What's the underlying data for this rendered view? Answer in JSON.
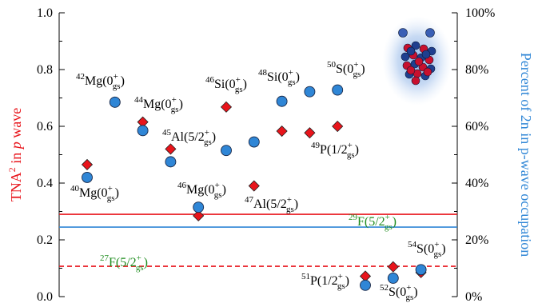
{
  "chart_data": {
    "type": "scatter",
    "x": [
      1,
      2,
      3,
      4,
      5,
      6,
      7,
      8,
      9,
      10,
      11,
      12,
      13
    ],
    "series": [
      {
        "name": "TNA² in p wave",
        "axis": "left",
        "color": "#e8141b",
        "marker": "diamond",
        "points": [
          {
            "x": 1,
            "y": 0.465
          },
          {
            "x": 2,
            "y": 0.685
          },
          {
            "x": 3,
            "y": 0.615
          },
          {
            "x": 4,
            "y": 0.52
          },
          {
            "x": 5,
            "y": 0.285
          },
          {
            "x": 6,
            "y": 0.668
          },
          {
            "x": 7,
            "y": 0.39
          },
          {
            "x": 8,
            "y": 0.583
          },
          {
            "x": 9,
            "y": 0.577
          },
          {
            "x": 10,
            "y": 0.6
          },
          {
            "x": 11,
            "y": 0.072
          },
          {
            "x": 12,
            "y": 0.105
          },
          {
            "x": 13,
            "y": 0.085
          }
        ]
      },
      {
        "name": "Percent of 2n in p-wave occupation",
        "axis": "right",
        "color": "#2f86d6",
        "marker": "circle",
        "points": [
          {
            "x": 1,
            "y": 42
          },
          {
            "x": 2,
            "y": 68.5
          },
          {
            "x": 3,
            "y": 58.5
          },
          {
            "x": 4,
            "y": 47.5
          },
          {
            "x": 5,
            "y": 31.5
          },
          {
            "x": 6,
            "y": 51.5
          },
          {
            "x": 7,
            "y": 54.5
          },
          {
            "x": 8,
            "y": 68.8
          },
          {
            "x": 9,
            "y": 72.2
          },
          {
            "x": 10,
            "y": 72.8
          },
          {
            "x": 11,
            "y": 4
          },
          {
            "x": 12,
            "y": 6.5
          },
          {
            "x": 13,
            "y": 9.5
          }
        ]
      }
    ],
    "reference_lines": [
      {
        "axis": "left",
        "y": 0.29,
        "color": "#e8141b",
        "style": "solid",
        "label_id": "f29"
      },
      {
        "axis": "left",
        "y": 0.245,
        "color": "#2f86d6",
        "style": "solid",
        "label_id": ""
      },
      {
        "axis": "left",
        "y": 0.107,
        "color": "#e8141b",
        "style": "dashed",
        "label_id": "f27"
      }
    ],
    "xlim": [
      0.5,
      13.5
    ],
    "ylim_left": [
      0.0,
      1.0
    ],
    "ylim_right": [
      0,
      100
    ],
    "yticks_left": [
      "0.0",
      "0.2",
      "0.4",
      "0.6",
      "0.8",
      "1.0"
    ],
    "yticks_right": [
      "0%",
      "20%",
      "40%",
      "60%",
      "80%",
      "100%"
    ],
    "ylabel_left": {
      "pre": "TNA",
      "sup": "2",
      "mid": " in ",
      "italic": "p",
      "post": " wave"
    },
    "ylabel_right": "Percent of 2n in p-wave occupation",
    "annotations": [
      {
        "id": "mg40",
        "mass": "40",
        "el": "Mg",
        "spin": "0",
        "sup": "+",
        "sub": "gs",
        "color": "#000000"
      },
      {
        "id": "mg42",
        "mass": "42",
        "el": "Mg",
        "spin": "0",
        "sup": "+",
        "sub": "gs",
        "color": "#000000"
      },
      {
        "id": "mg44",
        "mass": "44",
        "el": "Mg",
        "spin": "0",
        "sup": "+",
        "sub": "gs",
        "color": "#000000"
      },
      {
        "id": "al45",
        "mass": "45",
        "el": "Al",
        "spin": "5/2",
        "sup": "+",
        "sub": "gs",
        "color": "#000000"
      },
      {
        "id": "mg46",
        "mass": "46",
        "el": "Mg",
        "spin": "0",
        "sup": "+",
        "sub": "gs",
        "color": "#000000"
      },
      {
        "id": "si46",
        "mass": "46",
        "el": "Si",
        "spin": "0",
        "sup": "+",
        "sub": "gs",
        "color": "#000000"
      },
      {
        "id": "al47",
        "mass": "47",
        "el": "Al",
        "spin": "5/2",
        "sup": "+",
        "sub": "gs",
        "color": "#000000"
      },
      {
        "id": "si48",
        "mass": "48",
        "el": "Si",
        "spin": "0",
        "sup": "+",
        "sub": "gs",
        "color": "#000000"
      },
      {
        "id": "p49",
        "mass": "49",
        "el": "P",
        "spin": "1/2",
        "sup": "+",
        "sub": "gs",
        "color": "#000000"
      },
      {
        "id": "s50",
        "mass": "50",
        "el": "S",
        "spin": "0",
        "sup": "+",
        "sub": "gs",
        "color": "#000000"
      },
      {
        "id": "p51",
        "mass": "51",
        "el": "P",
        "spin": "1/2",
        "sup": "+",
        "sub": "gs",
        "color": "#000000"
      },
      {
        "id": "s52",
        "mass": "52",
        "el": "S",
        "spin": "0",
        "sup": "+",
        "sub": "gs",
        "color": "#000000"
      },
      {
        "id": "s54",
        "mass": "54",
        "el": "S",
        "spin": "0",
        "sup": "+",
        "sub": "gs",
        "color": "#000000"
      },
      {
        "id": "f29",
        "mass": "29",
        "el": "F",
        "spin": "5/2",
        "sup": "+",
        "sub": "gs",
        "color": "#1e8c1e"
      },
      {
        "id": "f27",
        "mass": "27",
        "el": "F",
        "spin": "5/2",
        "sup": "+",
        "sub": "gs",
        "color": "#1e8c1e"
      }
    ],
    "inset_image": "nucleus-cluster-icon",
    "grid": false
  }
}
